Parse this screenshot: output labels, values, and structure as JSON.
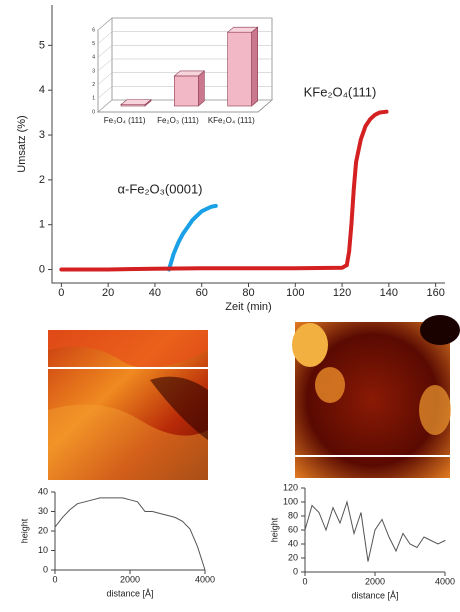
{
  "chart_data": [
    {
      "type": "line",
      "x_label": "Zeit (min)",
      "y_label": "Umsatz (%)",
      "xlim": [
        -4,
        164
      ],
      "xticks": [
        0,
        20,
        40,
        60,
        80,
        100,
        120,
        140,
        160
      ],
      "ylim": [
        -0.3,
        5.9
      ],
      "yticks": [
        0,
        1,
        2,
        3,
        4,
        5
      ],
      "series": [
        {
          "name": "α-Fe₂O₃(0001)",
          "color": "#1aa0e6",
          "x": [
            46,
            48,
            50,
            52,
            54,
            56,
            58,
            60,
            62,
            64,
            66
          ],
          "values": [
            0,
            0.35,
            0.6,
            0.8,
            0.95,
            1.1,
            1.2,
            1.3,
            1.35,
            1.4,
            1.42
          ]
        },
        {
          "name": "KFe₂O₄(111)",
          "color": "#d42020",
          "x": [
            0,
            20,
            40,
            60,
            80,
            100,
            120,
            122,
            123,
            124,
            125,
            126,
            128,
            130,
            132,
            134,
            136,
            139
          ],
          "values": [
            0,
            0,
            0.02,
            0.03,
            0.03,
            0.03,
            0.04,
            0.1,
            0.4,
            1,
            1.8,
            2.4,
            2.9,
            3.2,
            3.35,
            3.45,
            3.5,
            3.52
          ]
        }
      ]
    },
    {
      "type": "bar",
      "categories": [
        "Fe₃O₄ (111)",
        "Fe₂O₃ (111)",
        "KFe₂O₄ (111)"
      ],
      "values": [
        0.1,
        2.2,
        5.4
      ],
      "color": "#f2b8c6",
      "ylim": [
        0,
        6
      ],
      "yticks": [
        0,
        1,
        2,
        3,
        4,
        5,
        6
      ]
    },
    {
      "type": "line",
      "x_label": "distance [Å]",
      "y_label": "height",
      "xlim": [
        0,
        4000
      ],
      "xticks": [
        0,
        2000,
        4000
      ],
      "ylim": [
        0,
        40
      ],
      "yticks": [
        0,
        10,
        20,
        30,
        40
      ],
      "color": "#555555",
      "x": [
        0,
        200,
        400,
        600,
        800,
        1000,
        1200,
        1400,
        1600,
        1800,
        2000,
        2200,
        2400,
        2600,
        2800,
        3000,
        3200,
        3400,
        3600,
        3800,
        4000
      ],
      "values": [
        22,
        27,
        31,
        34,
        35,
        36,
        37,
        37,
        37,
        37,
        36,
        35,
        30,
        30,
        29,
        28,
        27,
        25,
        21,
        12,
        0
      ]
    },
    {
      "type": "line",
      "x_label": "distance [Å]",
      "y_label": "height",
      "xlim": [
        0,
        4000
      ],
      "xticks": [
        0,
        2000,
        4000
      ],
      "ylim": [
        0,
        120
      ],
      "yticks": [
        0,
        20,
        40,
        60,
        80,
        100,
        120
      ],
      "color": "#555555",
      "x": [
        0,
        200,
        400,
        600,
        800,
        1000,
        1200,
        1400,
        1600,
        1800,
        2000,
        2200,
        2400,
        2600,
        2800,
        3000,
        3200,
        3400,
        3600,
        3800,
        4000
      ],
      "values": [
        60,
        95,
        85,
        60,
        92,
        70,
        100,
        55,
        85,
        15,
        60,
        75,
        50,
        30,
        55,
        40,
        35,
        50,
        45,
        40,
        45
      ]
    }
  ]
}
